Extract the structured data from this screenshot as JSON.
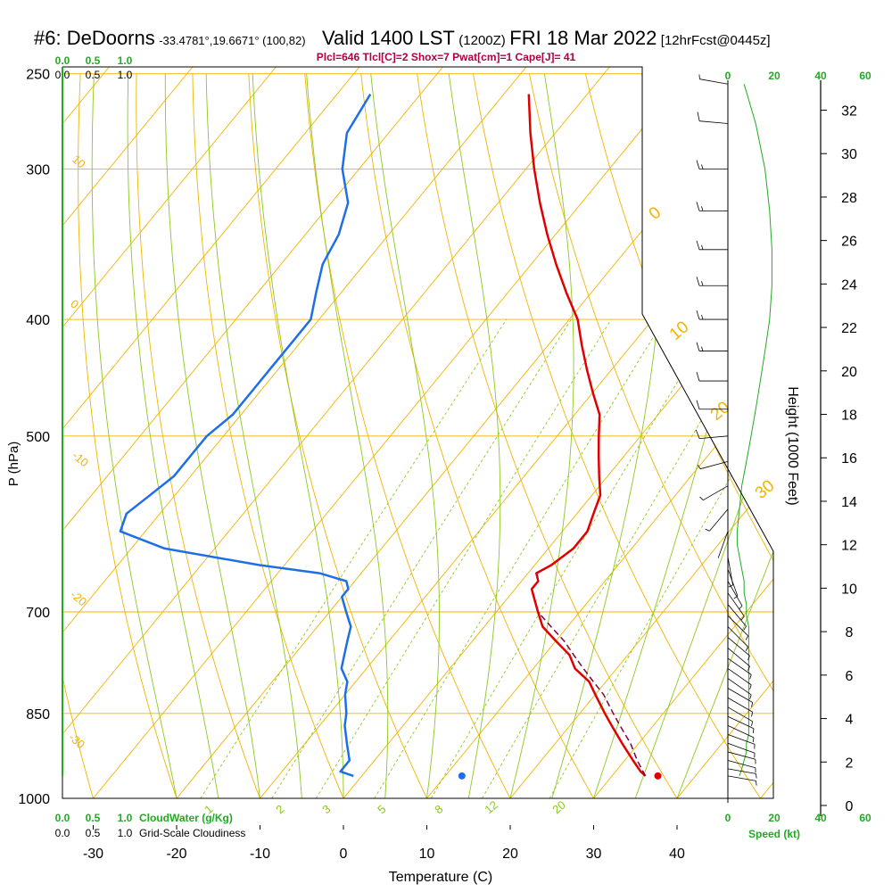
{
  "header": {
    "station": "#6: DeDoorns",
    "coords": "-33.4781°,19.6671° (100,82)",
    "valid": "Valid 1400 LST",
    "zulu": "(1200Z)",
    "date": "FRI 18 Mar 2022",
    "fcst": "[12hrFcst@0445z]",
    "indices": "Plcl=646 Tlcl[C]=2 Shox=7 Pwat[cm]=1 Cape[J]= 41"
  },
  "colors": {
    "isotherm": "#f0b400",
    "dry_adiabat": "#f0b400",
    "moist_adiabat": "#8cc81e",
    "mixing_ratio": "#8cc81e",
    "temperature": "#e00000",
    "dewpoint": "#1e6ee6",
    "parcel": "#800040",
    "cloud": "#22aa22",
    "frame": "#000000"
  },
  "chart_data": {
    "type": "line",
    "title": "",
    "xlabel": "Temperature (C)",
    "ylabel": "P (hPa)",
    "y2label": "Height (1000 Feet)",
    "xlim": [
      -35,
      45
    ],
    "ylim": [
      1000,
      250
    ],
    "y_scale": "log",
    "x_ticks": [
      "-30",
      "-20",
      "-10",
      "0",
      "10",
      "20",
      "30",
      "40"
    ],
    "pressure_ticks": [
      "250",
      "300",
      "400",
      "500",
      "700",
      "850",
      "1000"
    ],
    "height_ticks": [
      "0",
      "2",
      "4",
      "6",
      "8",
      "10",
      "12",
      "14",
      "16",
      "18",
      "20",
      "22",
      "24",
      "26",
      "28",
      "30",
      "32"
    ],
    "isotherm_labels": [
      "10",
      "0",
      "-10",
      "-20",
      "-30",
      "0",
      "10",
      "20",
      "30"
    ],
    "mixing_ratio_labels": [
      "1",
      "2",
      "3",
      "5",
      "8",
      "12",
      "20"
    ],
    "cloud_top_labels": [
      "0.0",
      "0.5",
      "1.0",
      "0.0",
      "0.5",
      "1.0"
    ],
    "cloud_bottom_labels": [
      "0.0",
      "0.5",
      "1.0",
      "CloudWater (g/Kg)",
      "0.0",
      "0.5",
      "1.0",
      "Grid-Scale Cloudiness"
    ],
    "speed_top_labels": [
      "0",
      "20",
      "40",
      "60"
    ],
    "speed_bottom_labels": [
      "0",
      "20",
      "40",
      "60"
    ],
    "speed_label": "Speed (kt)",
    "series": [
      {
        "key": "temperature",
        "pressure": [
          958,
          950,
          930,
          900,
          870,
          850,
          820,
          800,
          780,
          760,
          740,
          720,
          700,
          680,
          670,
          660,
          650,
          640,
          620,
          600,
          580,
          560,
          540,
          520,
          500,
          480,
          460,
          440,
          420,
          400,
          380,
          360,
          340,
          320,
          300,
          280,
          260
        ],
        "temperature": [
          34,
          33,
          31,
          28,
          25,
          23,
          20,
          18,
          15,
          13,
          10,
          7,
          5,
          3,
          2,
          2,
          1,
          2,
          3,
          3,
          2,
          1,
          -1,
          -3,
          -5,
          -7,
          -10,
          -13,
          -16,
          -19,
          -23,
          -27,
          -31,
          -35,
          -39,
          -43,
          -47
        ]
      },
      {
        "key": "dewpoint",
        "pressure": [
          958,
          950,
          930,
          900,
          870,
          850,
          820,
          800,
          780,
          760,
          740,
          720,
          700,
          680,
          670,
          660,
          650,
          640,
          620,
          600,
          580,
          560,
          540,
          520,
          500,
          480,
          460,
          440,
          420,
          400,
          380,
          360,
          340,
          320,
          300,
          280,
          260
        ],
        "temperature": [
          -1,
          -3,
          -3,
          -5,
          -7,
          -8,
          -10,
          -11,
          -13,
          -14,
          -15,
          -16,
          -18,
          -20,
          -20,
          -21,
          -25,
          -33,
          -46,
          -53,
          -54,
          -53,
          -52,
          -52,
          -52,
          -51,
          -51,
          -51,
          -51,
          -51,
          -53,
          -55,
          -56,
          -58,
          -62,
          -65,
          -66
        ]
      },
      {
        "key": "parcel",
        "pressure": [
          958,
          930,
          900,
          870,
          850,
          820,
          800,
          780,
          760,
          740,
          720,
          700
        ],
        "temperature": [
          34,
          31.5,
          29,
          26,
          24,
          21,
          18.5,
          16,
          13.5,
          11,
          8,
          5
        ]
      }
    ],
    "surface_temperature_point": {
      "pressure": 958,
      "temperature": 35.5
    },
    "surface_dewpoint_point": {
      "pressure": 958,
      "temperature": 12
    },
    "wind_profile": {
      "pressure": [
        958,
        945,
        930,
        915,
        900,
        885,
        870,
        855,
        840,
        825,
        810,
        795,
        780,
        765,
        750,
        735,
        720,
        705,
        690,
        675,
        660,
        645,
        630,
        615,
        600,
        575,
        550,
        525,
        500,
        475,
        450,
        425,
        400,
        375,
        350,
        325,
        300,
        275,
        255
      ],
      "speed_kt": [
        5,
        6,
        7,
        8,
        8,
        9,
        9,
        9,
        9,
        9,
        9,
        9,
        9,
        9,
        9,
        9,
        9,
        8,
        8,
        7,
        7,
        6,
        5,
        4,
        4,
        5,
        6,
        8,
        10,
        12,
        14,
        16,
        18,
        19,
        19,
        18,
        16,
        12,
        7
      ],
      "direction_deg": [
        100,
        100,
        105,
        105,
        110,
        110,
        115,
        115,
        120,
        120,
        120,
        125,
        125,
        125,
        130,
        130,
        135,
        135,
        140,
        145,
        150,
        160,
        170,
        180,
        200,
        220,
        240,
        255,
        265,
        270,
        270,
        270,
        270,
        270,
        270,
        270,
        270,
        275,
        280
      ]
    }
  }
}
